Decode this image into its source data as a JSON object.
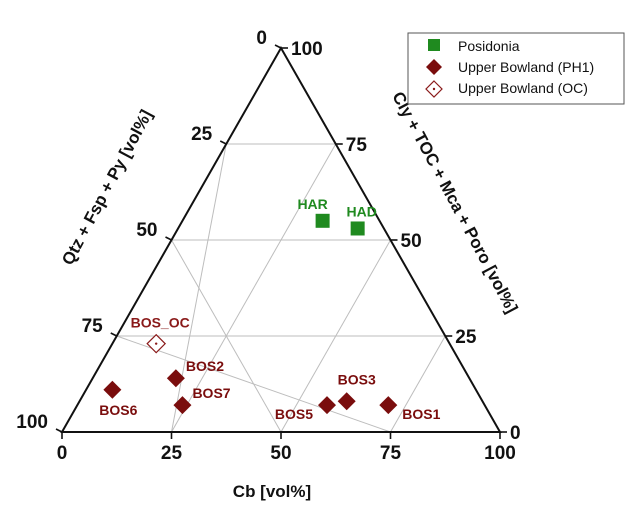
{
  "chart_data": {
    "type": "ternary-scatter",
    "axes": {
      "left": {
        "label": "Qtz + Fsp + Py [vol%]"
      },
      "right": {
        "label": "Cly + TOC + Mca + Poro [vol%]"
      },
      "bottom": {
        "label": "Cb [vol%]"
      }
    },
    "tick_labels": {
      "bottom": [
        "0",
        "25",
        "50",
        "75",
        "100"
      ],
      "right": [
        "0",
        "25",
        "50",
        "75",
        "100"
      ],
      "left": [
        "0",
        "25",
        "50",
        "75",
        "100"
      ]
    },
    "grid": true,
    "legend": {
      "placement": "top-right",
      "entries": [
        {
          "label": "Posidonia",
          "marker": "square",
          "color": "#1f8a1f"
        },
        {
          "label": "Upper Bowland (PH1)",
          "marker": "diamond",
          "color": "#7a0d0d"
        },
        {
          "label": "Upper Bowland (OC)",
          "marker": "diamond-open",
          "color": "#8a1a1a"
        }
      ]
    },
    "series": [
      {
        "name": "Posidonia",
        "marker": "square",
        "color": "#1f8a1f",
        "points": [
          {
            "label": "HAR",
            "cb": 32,
            "cly": 55
          },
          {
            "label": "HAD",
            "cb": 41,
            "cly": 53
          }
        ]
      },
      {
        "name": "Upper Bowland (PH1)",
        "marker": "diamond",
        "color": "#7a0d0d",
        "points": [
          {
            "label": "BOS6",
            "cb": 6,
            "cly": 11
          },
          {
            "label": "BOS2",
            "cb": 19,
            "cly": 14
          },
          {
            "label": "BOS7",
            "cb": 24,
            "cly": 7
          },
          {
            "label": "BOS5",
            "cb": 57,
            "cly": 7
          },
          {
            "label": "BOS3",
            "cb": 61,
            "cly": 8
          },
          {
            "label": "BOS1",
            "cb": 71,
            "cly": 7
          }
        ]
      },
      {
        "name": "Upper Bowland (OC)",
        "marker": "diamond-open",
        "color": "#8a1a1a",
        "points": [
          {
            "label": "BOS_OC",
            "cb": 10,
            "cly": 23
          }
        ]
      }
    ]
  }
}
